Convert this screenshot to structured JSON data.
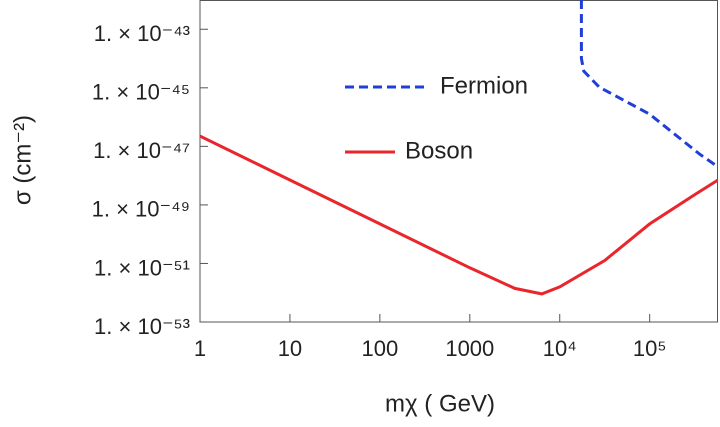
{
  "chart_data": {
    "type": "line",
    "xlabel": "mχ ( GeV)",
    "ylabel": "σ (cm⁻²)",
    "xscale": "log",
    "yscale": "log",
    "xlim": [
      1,
      575000
    ],
    "ylim": [
      1e-53,
      1e-42
    ],
    "xticks": [
      1,
      10,
      100,
      1000,
      {
        "value": 10000,
        "label": "10⁴"
      },
      {
        "value": 100000,
        "label": "10⁵"
      }
    ],
    "yticks": [
      {
        "value": 1e-43,
        "label": "1. × 10⁻⁴³"
      },
      {
        "value": 1e-45,
        "label": "1. × 10⁻⁴⁵"
      },
      {
        "value": 1e-47,
        "label": "1. × 10⁻⁴⁷"
      },
      {
        "value": 1e-49,
        "label": "1. × 10⁻⁴⁹"
      },
      {
        "value": 1e-51,
        "label": "1. × 10⁻⁵¹"
      },
      {
        "value": 1e-53,
        "label": "1. × 10⁻⁵³"
      }
    ],
    "series": [
      {
        "name": "Fermion",
        "color": "#1f3fd8",
        "dash": true,
        "x": [
          17400,
          17400,
          18500,
          27500,
          100000,
          360000,
          575000
        ],
        "values": [
          1e-42,
          1e-44,
          3.7e-45,
          1.05e-45,
          1.26e-46,
          5.4e-48,
          2e-48
        ]
      },
      {
        "name": "Boson",
        "color": "#e8262b",
        "dash": false,
        "x": [
          1,
          10,
          100,
          1000,
          3162,
          6310,
          10000,
          31623,
          100000,
          316228,
          575000
        ],
        "values": [
          2.24e-47,
          7.08e-49,
          2.24e-50,
          7.08e-52,
          1.41e-52,
          9.1e-53,
          1.58e-52,
          1.26e-51,
          2.24e-50,
          2.24e-49,
          7.08e-49
        ]
      }
    ]
  }
}
